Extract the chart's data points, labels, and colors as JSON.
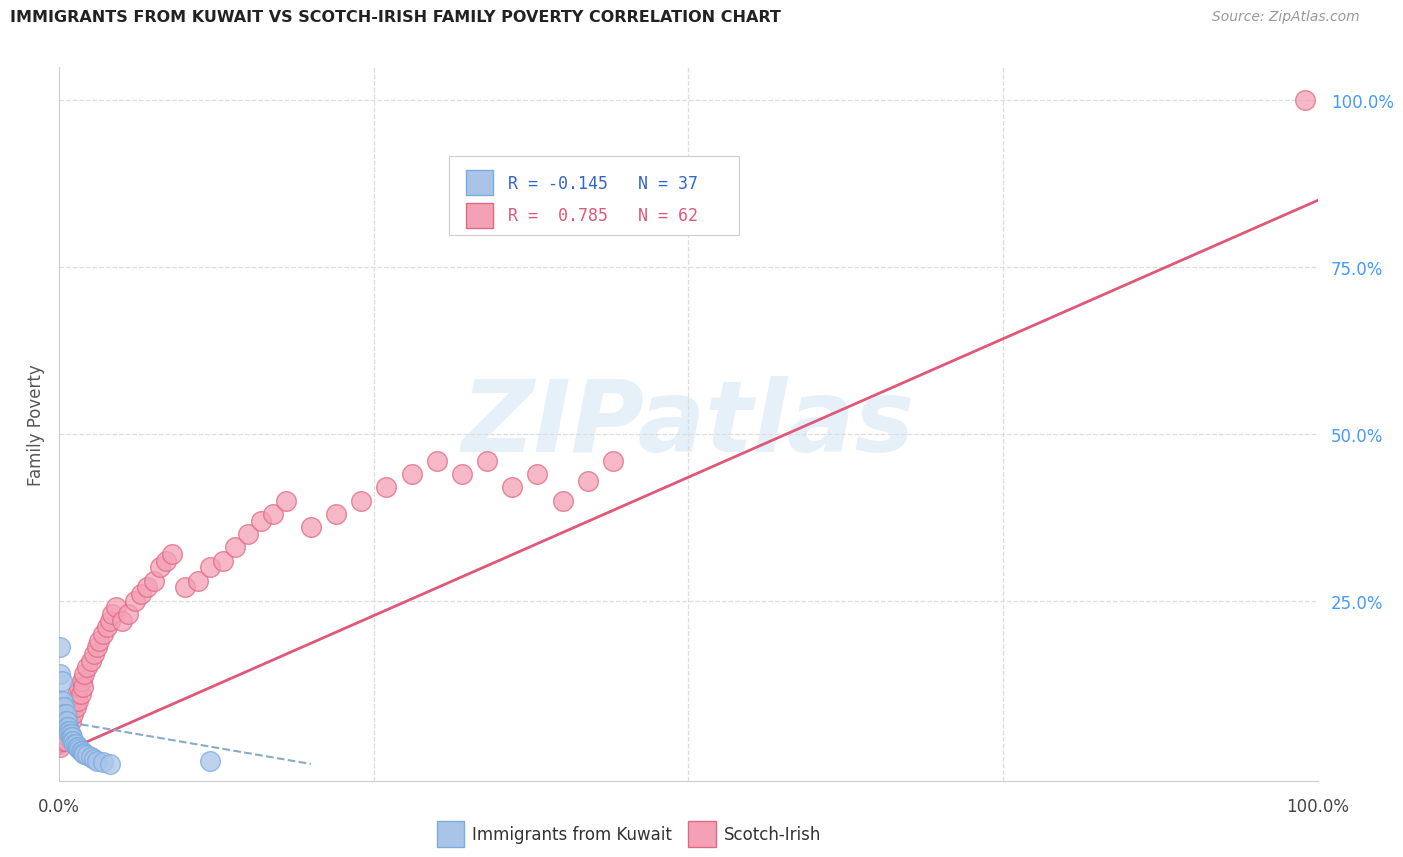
{
  "title": "IMMIGRANTS FROM KUWAIT VS SCOTCH-IRISH FAMILY POVERTY CORRELATION CHART",
  "source": "Source: ZipAtlas.com",
  "ylabel": "Family Poverty",
  "legend_label1": "Immigrants from Kuwait",
  "legend_label2": "Scotch-Irish",
  "legend_r1": "R = -0.145",
  "legend_n1": "N = 37",
  "legend_r2": "R =  0.785",
  "legend_n2": "N = 62",
  "right_ytick_labels": [
    "100.0%",
    "75.0%",
    "50.0%",
    "25.0%"
  ],
  "right_ytick_values": [
    1.0,
    0.75,
    0.5,
    0.25
  ],
  "xlim": [
    0.0,
    1.0
  ],
  "ylim": [
    -0.02,
    1.05
  ],
  "background_color": "#ffffff",
  "grid_color": "#dddddd",
  "blue_color": "#aac4e8",
  "blue_edge_color": "#7aabde",
  "pink_color": "#f4a0b5",
  "pink_edge_color": "#e06882",
  "trendline_blue_color": "#88aacc",
  "trendline_pink_color": "#e05878",
  "watermark_text": "ZIPatlas",
  "watermark_color": "#d0e4f5",
  "blue_scatter_x": [
    0.001,
    0.001,
    0.002,
    0.002,
    0.003,
    0.003,
    0.004,
    0.004,
    0.005,
    0.005,
    0.006,
    0.006,
    0.007,
    0.007,
    0.008,
    0.008,
    0.009,
    0.009,
    0.01,
    0.01,
    0.011,
    0.012,
    0.013,
    0.014,
    0.015,
    0.016,
    0.017,
    0.018,
    0.019,
    0.02,
    0.022,
    0.025,
    0.028,
    0.03,
    0.035,
    0.04,
    0.12
  ],
  "blue_scatter_y": [
    0.18,
    0.14,
    0.13,
    0.1,
    0.1,
    0.09,
    0.09,
    0.08,
    0.08,
    0.07,
    0.07,
    0.06,
    0.06,
    0.055,
    0.055,
    0.05,
    0.05,
    0.045,
    0.045,
    0.04,
    0.04,
    0.035,
    0.035,
    0.03,
    0.03,
    0.028,
    0.025,
    0.025,
    0.022,
    0.02,
    0.018,
    0.015,
    0.012,
    0.01,
    0.008,
    0.005,
    0.01
  ],
  "pink_scatter_x": [
    0.001,
    0.002,
    0.003,
    0.004,
    0.005,
    0.006,
    0.007,
    0.008,
    0.009,
    0.01,
    0.011,
    0.012,
    0.013,
    0.014,
    0.015,
    0.016,
    0.017,
    0.018,
    0.019,
    0.02,
    0.022,
    0.025,
    0.028,
    0.03,
    0.032,
    0.035,
    0.038,
    0.04,
    0.042,
    0.045,
    0.05,
    0.055,
    0.06,
    0.065,
    0.07,
    0.075,
    0.08,
    0.085,
    0.09,
    0.1,
    0.11,
    0.12,
    0.13,
    0.14,
    0.15,
    0.16,
    0.17,
    0.18,
    0.2,
    0.22,
    0.24,
    0.26,
    0.28,
    0.3,
    0.32,
    0.34,
    0.36,
    0.38,
    0.4,
    0.42,
    0.44,
    0.99
  ],
  "pink_scatter_y": [
    0.03,
    0.04,
    0.05,
    0.06,
    0.04,
    0.07,
    0.06,
    0.08,
    0.07,
    0.09,
    0.08,
    0.1,
    0.09,
    0.11,
    0.1,
    0.12,
    0.11,
    0.13,
    0.12,
    0.14,
    0.15,
    0.16,
    0.17,
    0.18,
    0.19,
    0.2,
    0.21,
    0.22,
    0.23,
    0.24,
    0.22,
    0.23,
    0.25,
    0.26,
    0.27,
    0.28,
    0.3,
    0.31,
    0.32,
    0.27,
    0.28,
    0.3,
    0.31,
    0.33,
    0.35,
    0.37,
    0.38,
    0.4,
    0.36,
    0.38,
    0.4,
    0.42,
    0.44,
    0.46,
    0.44,
    0.46,
    0.42,
    0.44,
    0.4,
    0.43,
    0.46,
    1.0
  ],
  "blue_trendline_x": [
    0.0,
    0.2
  ],
  "blue_trendline_y": [
    0.07,
    0.005
  ],
  "pink_trendline_x": [
    0.0,
    1.0
  ],
  "pink_trendline_y": [
    0.02,
    0.85
  ]
}
